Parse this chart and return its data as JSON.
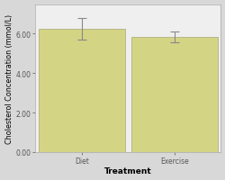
{
  "categories": [
    "Diet",
    "Exercise"
  ],
  "values": [
    6.25,
    5.82
  ],
  "errors": [
    0.55,
    0.28
  ],
  "bar_color": "#d4d485",
  "bar_edgecolor": "#b0b080",
  "error_color": "#888888",
  "xlabel": "Treatment",
  "ylabel": "Cholesterol Concentration (mmol/L)",
  "ylim": [
    0.0,
    7.5
  ],
  "yticks": [
    0.0,
    2.0,
    4.0,
    6.0
  ],
  "ytick_labels": [
    "0.00",
    "2.00",
    "4.00",
    "6.00"
  ],
  "outer_bg": "#d8d8d8",
  "plot_bg": "#efefef",
  "xlabel_fontsize": 6.5,
  "ylabel_fontsize": 5.8,
  "tick_fontsize": 5.5,
  "bar_width": 0.65,
  "bar_positions": [
    0.3,
    1.0
  ],
  "xlim": [
    -0.05,
    1.35
  ],
  "capsize": 3.5,
  "elinewidth": 0.8,
  "capthick": 0.8,
  "spine_color": "#aaaaaa"
}
